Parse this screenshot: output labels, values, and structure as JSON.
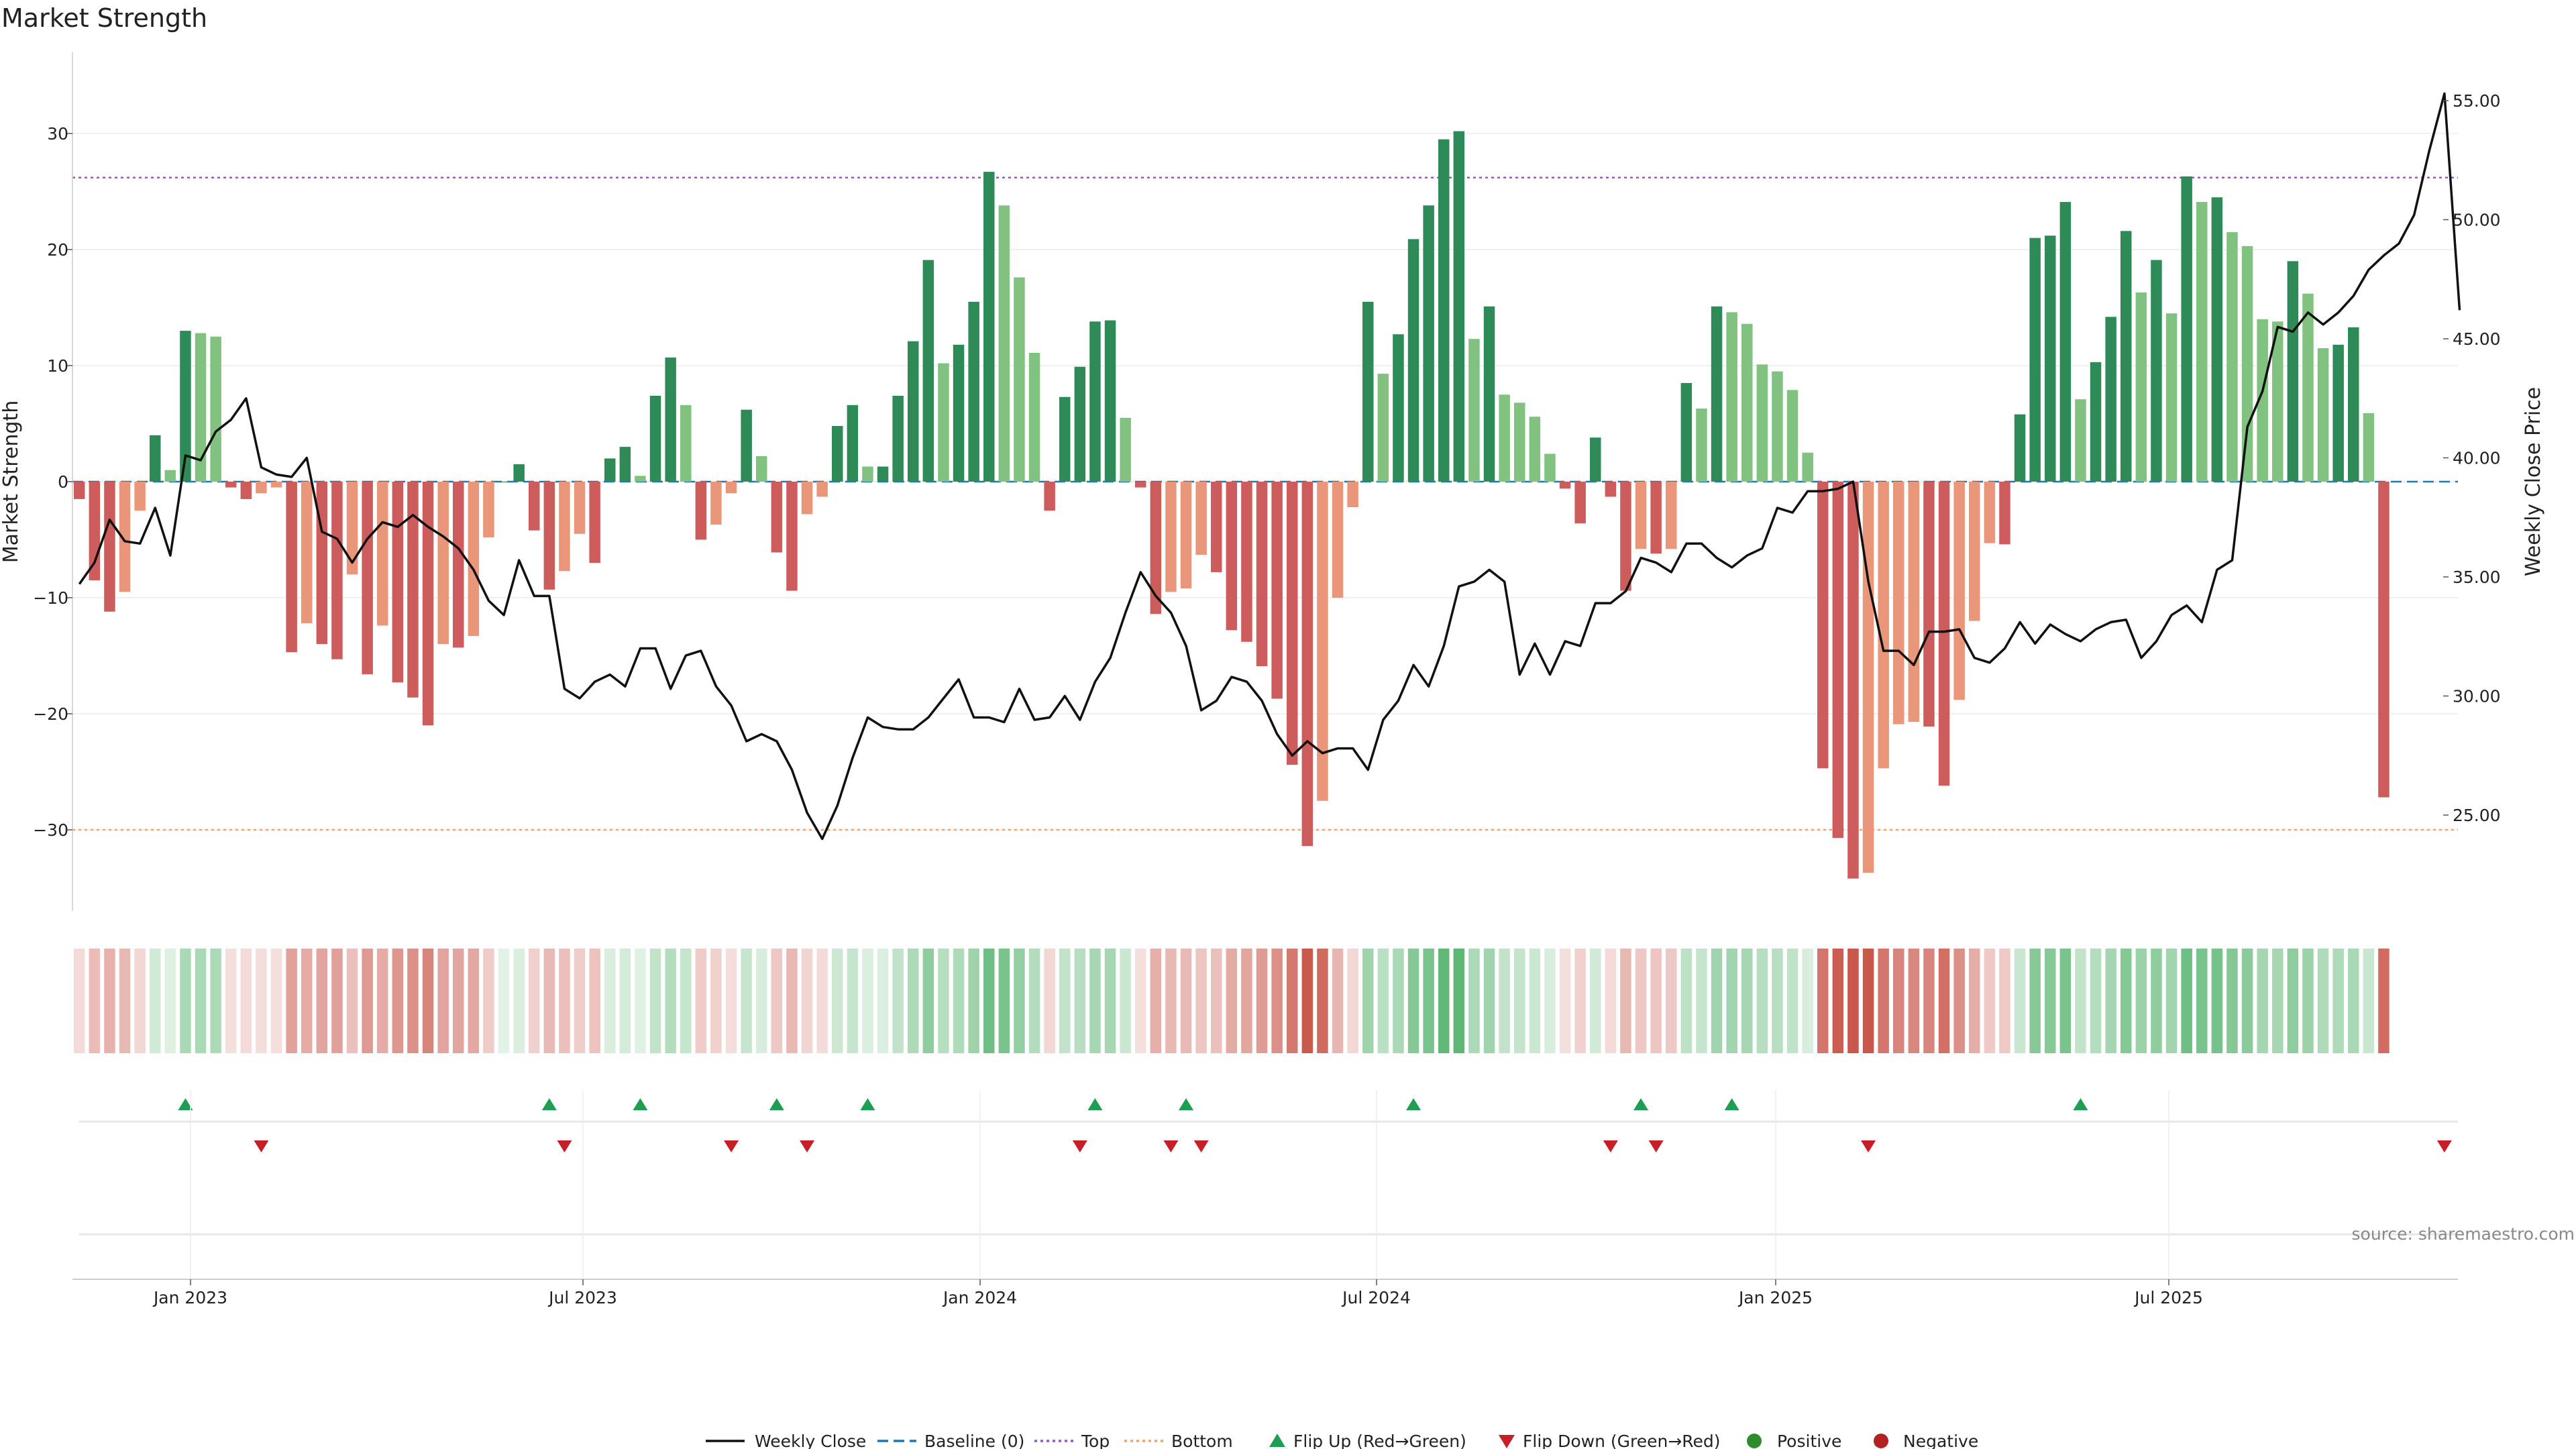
{
  "chart_data": {
    "type": "bar",
    "title": "Market Strength",
    "ylabel_left": "Market Strength",
    "ylabel_right": "Weekly Close Price",
    "source": "source: sharemaestro.com",
    "ylim_left": [
      -37,
      37
    ],
    "ylim_right": [
      21.5,
      57.4
    ],
    "left_ticks": [
      "30",
      "20",
      "10",
      "0",
      "−10",
      "−20",
      "−30"
    ],
    "right_ticks": [
      "55.00",
      "50.00",
      "45.00",
      "40.00",
      "35.00",
      "30.00",
      "25.00"
    ],
    "x_tick_labels": [
      "Jan 2023",
      "Jul 2023",
      "Jan 2024",
      "Jul 2024",
      "Jan 2025",
      "Jul 2025"
    ],
    "top_line": 26.2,
    "bottom_line": -30,
    "strength": [
      -1.5,
      -8.5,
      -11.2,
      -9.5,
      -2.5,
      4,
      1,
      13,
      12.8,
      12.5,
      -0.5,
      -1.5,
      -1,
      -0.5,
      -14.7,
      -12.2,
      -14,
      -15.3,
      -8,
      -16.6,
      -12.4,
      -17.3,
      -18.6,
      -21,
      -14,
      -14.3,
      -13.3,
      -4.8,
      0,
      1.5,
      -4.2,
      -9.3,
      -7.7,
      -4.5,
      -7,
      2,
      3,
      0.5,
      7.4,
      10.7,
      6.6,
      -5,
      -3.7,
      -1,
      6.2,
      2.2,
      -6.1,
      -9.4,
      -2.8,
      -1.3,
      4.8,
      6.6,
      1.3,
      1.3,
      7.4,
      12.1,
      19.1,
      10.2,
      11.8,
      15.5,
      26.7,
      23.8,
      17.6,
      11.1,
      -2.5,
      7.3,
      9.9,
      13.8,
      13.9,
      5.5,
      -0.5,
      -11.4,
      -9.5,
      -9.2,
      -6.3,
      -7.8,
      -12.8,
      -13.8,
      -15.9,
      -18.7,
      -24.4,
      -31.4,
      -27.5,
      -10,
      -2.2,
      15.5,
      9.3,
      12.7,
      20.9,
      23.8,
      29.5,
      30.2,
      12.3,
      15.1,
      7.5,
      6.8,
      5.6,
      2.4,
      -0.6,
      -3.6,
      3.8,
      -1.3,
      -9.4,
      -5.8,
      -6.2,
      -5.8,
      8.5,
      6.3,
      15.1,
      14.6,
      13.6,
      10.1,
      9.5,
      7.9,
      2.5,
      -24.7,
      -30.7,
      -34.2,
      -33.7,
      -24.7,
      -20.9,
      -20.7,
      -21.1,
      -26.2,
      -18.8,
      -12,
      -5.3,
      -5.4,
      5.8,
      21,
      21.2,
      24.1,
      7.1,
      10.3,
      14.2,
      21.6,
      16.3,
      19.1,
      14.5,
      26.3,
      24.1,
      24.5,
      21.5,
      20.3,
      14,
      13.8,
      19,
      16.2,
      11.5,
      11.8,
      13.3,
      5.9,
      -27.2
    ],
    "price": [
      34.7,
      35.6,
      37.4,
      36.5,
      36.4,
      37.9,
      35.9,
      40.1,
      39.9,
      41.1,
      41.6,
      42.5,
      39.6,
      39.3,
      39.2,
      40,
      36.9,
      36.6,
      35.6,
      36.6,
      37.3,
      37.1,
      37.6,
      37.1,
      36.7,
      36.2,
      35.3,
      34,
      33.4,
      35.7,
      34.2,
      34.2,
      30.3,
      29.9,
      30.6,
      30.9,
      30.4,
      32,
      32,
      30.3,
      31.7,
      31.9,
      30.4,
      29.6,
      28.1,
      28.4,
      28.1,
      26.9,
      25.1,
      24,
      25.4,
      27.4,
      29.1,
      28.7,
      28.6,
      28.6,
      29.1,
      29.9,
      30.7,
      29.1,
      29.1,
      28.9,
      30.3,
      29,
      29.1,
      30,
      29,
      30.6,
      31.6,
      33.5,
      35.2,
      34.2,
      33.5,
      32.1,
      29.4,
      29.8,
      30.8,
      30.6,
      29.8,
      28.4,
      27.5,
      28.1,
      27.6,
      27.8,
      27.8,
      26.9,
      29,
      29.8,
      31.3,
      30.4,
      32.1,
      34.6,
      34.8,
      35.3,
      34.8,
      30.9,
      32.2,
      30.9,
      32.3,
      32.1,
      33.9,
      33.9,
      34.4,
      35.8,
      35.6,
      35.2,
      36.4,
      36.4,
      35.8,
      35.4,
      35.9,
      36.2,
      37.9,
      37.7,
      38.6,
      38.6,
      38.7,
      39,
      34.8,
      31.9,
      31.9,
      31.3,
      32.7,
      32.7,
      32.8,
      31.6,
      31.4,
      32,
      33.1,
      32.2,
      33,
      32.6,
      32.3,
      32.8,
      33.1,
      33.2,
      31.6,
      32.3,
      33.4,
      33.8,
      33.1,
      35.3,
      35.7,
      41.3,
      42.8,
      45.5,
      45.3,
      46.1,
      45.6,
      46.1,
      46.8,
      47.9,
      48.5,
      49,
      50.2,
      52.9,
      55.3,
      46.2
    ],
    "flip_up_weeks": [
      7,
      31,
      37,
      46,
      52,
      67,
      73,
      88,
      103,
      109,
      132
    ],
    "flip_down_weeks": [
      12,
      32,
      43,
      48,
      66,
      72,
      74,
      101,
      104,
      118,
      156
    ],
    "series": [
      {
        "name": "Weekly Close"
      },
      {
        "name": "Baseline (0)"
      },
      {
        "name": "Top"
      },
      {
        "name": "Bottom"
      },
      {
        "name": "Flip Up (Red→Green)"
      },
      {
        "name": "Flip Down (Green→Red)"
      },
      {
        "name": "Positive"
      },
      {
        "name": "Negative"
      }
    ],
    "colors": {
      "pos_strong": "#2e8b57",
      "pos_weak": "#82c280",
      "neg_strong": "#cd5c5c",
      "neg_weak": "#e9967a",
      "price_line": "#111111",
      "top": "#9a55c9",
      "bottom": "#f2a36a",
      "baseline": "#1f77b4",
      "flip_up": "#1e9e52",
      "flip_down": "#c81e28"
    }
  }
}
